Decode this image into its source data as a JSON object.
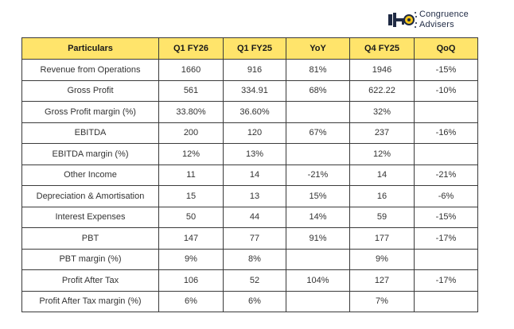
{
  "logo": {
    "line1": "Congruence",
    "line2": "Advisers"
  },
  "colors": {
    "header_bg": "#ffe46b",
    "border": "#3a3a3a",
    "logo_yellow": "#f5c518",
    "logo_navy": "#1f2a44"
  },
  "table": {
    "headers": [
      "Particulars",
      "Q1 FY26",
      "Q1 FY25",
      "YoY",
      "Q4 FY25",
      "QoQ"
    ],
    "rows": [
      [
        "Revenue from Operations",
        "1660",
        "916",
        "81%",
        "1946",
        "-15%"
      ],
      [
        "Gross Profit",
        "561",
        "334.91",
        "68%",
        "622.22",
        "-10%"
      ],
      [
        "Gross Profit margin (%)",
        "33.80%",
        "36.60%",
        "",
        "32%",
        ""
      ],
      [
        "EBITDA",
        "200",
        "120",
        "67%",
        "237",
        "-16%"
      ],
      [
        "EBITDA margin (%)",
        "12%",
        "13%",
        "",
        "12%",
        ""
      ],
      [
        "Other Income",
        "11",
        "14",
        "-21%",
        "14",
        "-21%"
      ],
      [
        "Depreciation & Amortisation",
        "15",
        "13",
        "15%",
        "16",
        "-6%"
      ],
      [
        "Interest Expenses",
        "50",
        "44",
        "14%",
        "59",
        "-15%"
      ],
      [
        "PBT",
        "147",
        "77",
        "91%",
        "177",
        "-17%"
      ],
      [
        "PBT margin (%)",
        "9%",
        "8%",
        "",
        "9%",
        ""
      ],
      [
        "Profit After Tax",
        "106",
        "52",
        "104%",
        "127",
        "-17%"
      ],
      [
        "Profit After Tax margin (%)",
        "6%",
        "6%",
        "",
        "7%",
        ""
      ]
    ]
  }
}
